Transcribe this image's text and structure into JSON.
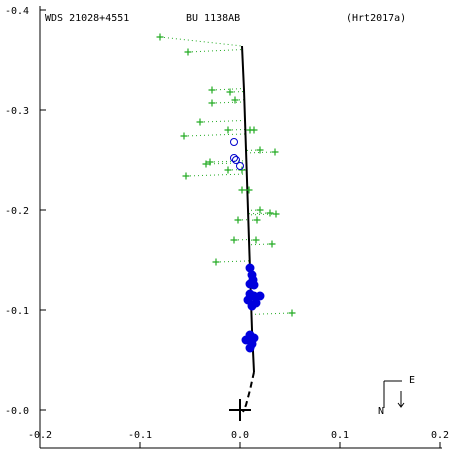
{
  "header": {
    "wds": "WDS 21028+4551",
    "disc": "BU 1138AB",
    "orbit_ref": "(Hrt2017a)"
  },
  "compass": {
    "north": "N",
    "east": "E"
  },
  "chart_data": {
    "type": "scatter",
    "title": "",
    "xlabel": "",
    "ylabel": "",
    "xlim": [
      -0.2,
      0.2
    ],
    "ylim": [
      -0.04,
      0.4
    ],
    "x_ticks": [
      -0.2,
      -0.1,
      0.0,
      0.1,
      0.2
    ],
    "x_tick_labels": [
      "-0.2",
      "-0.1",
      "0.0",
      "0.1",
      "0.2"
    ],
    "y_ticks": [
      0.0,
      0.1,
      0.2,
      0.3,
      0.4
    ],
    "y_tick_labels": [
      "-0.0",
      "-0.1",
      "-0.2",
      "-0.3",
      "-0.4"
    ],
    "grid": false,
    "primary_star": [
      0.0,
      0.0
    ],
    "orbit_solid": [
      [
        0.014,
        0.038
      ],
      [
        0.012,
        0.08
      ],
      [
        0.01,
        0.14
      ],
      [
        0.008,
        0.2
      ],
      [
        0.006,
        0.26
      ],
      [
        0.004,
        0.32
      ],
      [
        0.002,
        0.364
      ]
    ],
    "orbit_dashed": [
      [
        0.014,
        0.038
      ],
      [
        0.01,
        0.02
      ],
      [
        0.006,
        0.005
      ],
      [
        0.003,
        -0.002
      ]
    ],
    "series": [
      {
        "marker": "plus",
        "color": "#22aa22",
        "points": [
          [
            -0.08,
            0.373
          ],
          [
            -0.052,
            0.358
          ],
          [
            -0.028,
            0.32
          ],
          [
            -0.028,
            0.307
          ],
          [
            -0.01,
            0.318
          ],
          [
            -0.005,
            0.31
          ],
          [
            -0.04,
            0.288
          ],
          [
            -0.056,
            0.274
          ],
          [
            -0.012,
            0.28
          ],
          [
            0.01,
            0.28
          ],
          [
            0.014,
            0.28
          ],
          [
            0.035,
            0.258
          ],
          [
            0.02,
            0.26
          ],
          [
            -0.03,
            0.248
          ],
          [
            -0.034,
            0.246
          ],
          [
            -0.054,
            0.234
          ],
          [
            -0.012,
            0.24
          ],
          [
            0.002,
            0.24
          ],
          [
            0.002,
            0.22
          ],
          [
            0.009,
            0.22
          ],
          [
            0.02,
            0.2
          ],
          [
            0.03,
            0.197
          ],
          [
            0.036,
            0.196
          ],
          [
            0.017,
            0.19
          ],
          [
            -0.002,
            0.19
          ],
          [
            -0.006,
            0.17
          ],
          [
            0.016,
            0.17
          ],
          [
            0.032,
            0.166
          ],
          [
            -0.024,
            0.148
          ],
          [
            0.052,
            0.097
          ]
        ]
      },
      {
        "marker": "open-circle",
        "color": "#0000cc",
        "points": [
          [
            -0.006,
            0.268
          ],
          [
            -0.006,
            0.252
          ],
          [
            -0.004,
            0.25
          ],
          [
            0.0,
            0.244
          ]
        ]
      },
      {
        "marker": "filled-circle",
        "color": "#0000dd",
        "points": [
          [
            0.01,
            0.142
          ],
          [
            0.012,
            0.135
          ],
          [
            0.013,
            0.13
          ],
          [
            0.01,
            0.126
          ],
          [
            0.014,
            0.125
          ],
          [
            0.01,
            0.116
          ],
          [
            0.014,
            0.114
          ],
          [
            0.02,
            0.114
          ],
          [
            0.008,
            0.11
          ],
          [
            0.016,
            0.107
          ],
          [
            0.012,
            0.104
          ],
          [
            0.01,
            0.075
          ],
          [
            0.014,
            0.072
          ],
          [
            0.006,
            0.07
          ],
          [
            0.012,
            0.066
          ],
          [
            0.01,
            0.062
          ]
        ]
      }
    ]
  }
}
